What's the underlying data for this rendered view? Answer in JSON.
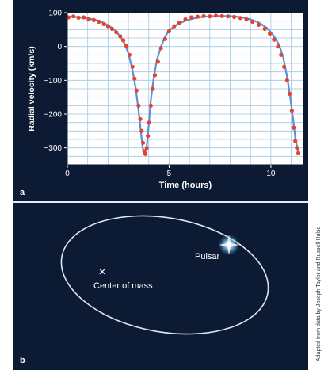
{
  "panel_a": {
    "label": "a"
  },
  "panel_b": {
    "label": "b",
    "center_label": "Center of mass",
    "pulsar_label": "Pulsar",
    "center_marker": "×"
  },
  "credit": "Adapted from data by Joseph Taylor and Russell Hulse",
  "colors": {
    "background": "#0d1a33",
    "plot_bg": "#ffffff",
    "grid": "#9ec7e3",
    "fit_line": "#5b8fd6",
    "data_points": "#e8412c",
    "orbit": "#d9e8f5",
    "text": "#ffffff"
  },
  "chart_data": {
    "type": "scatter",
    "xlabel": "Time (hours)",
    "ylabel": "Radial velocity (km/s)",
    "xlim": [
      0,
      11.6
    ],
    "ylim": [
      -350,
      100
    ],
    "x_ticks": [
      0,
      5,
      10
    ],
    "y_ticks": [
      100,
      0,
      -100,
      -200,
      -300
    ],
    "y_tick_labels": [
      "100",
      "0",
      "−100",
      "−200",
      "−300"
    ],
    "grid": true,
    "series": [
      {
        "kind": "fit-curve",
        "x": [
          0.0,
          0.4,
          0.8,
          1.2,
          1.6,
          2.0,
          2.3,
          2.6,
          2.8,
          3.0,
          3.2,
          3.35,
          3.5,
          3.6,
          3.7,
          3.8,
          3.9,
          4.0,
          4.1,
          4.25,
          4.4,
          4.6,
          4.8,
          5.0,
          5.4,
          5.8,
          6.2,
          6.6,
          7.0,
          7.4,
          7.8,
          8.2,
          8.6,
          9.0,
          9.4,
          9.8,
          10.1,
          10.4,
          10.6,
          10.8,
          10.95,
          11.1,
          11.2,
          11.3,
          11.35
        ],
        "y": [
          88,
          87,
          85,
          81,
          75,
          63,
          50,
          30,
          10,
          -20,
          -70,
          -120,
          -190,
          -245,
          -300,
          -320,
          -295,
          -230,
          -160,
          -90,
          -40,
          0,
          28,
          48,
          65,
          76,
          83,
          87,
          89,
          90,
          90,
          89,
          86,
          80,
          71,
          55,
          35,
          5,
          -30,
          -90,
          -150,
          -220,
          -270,
          -300,
          -312
        ]
      },
      {
        "kind": "data-points",
        "x": [
          0.05,
          0.3,
          0.55,
          0.8,
          1.05,
          1.3,
          1.55,
          1.8,
          2.0,
          2.2,
          2.4,
          2.6,
          2.75,
          2.9,
          3.05,
          3.2,
          3.3,
          3.4,
          3.5,
          3.58,
          3.65,
          3.72,
          3.78,
          3.84,
          3.9,
          3.96,
          4.02,
          4.1,
          4.2,
          4.3,
          4.45,
          4.6,
          4.8,
          5.0,
          5.25,
          5.5,
          5.8,
          6.1,
          6.4,
          6.7,
          7.0,
          7.3,
          7.6,
          7.9,
          8.2,
          8.5,
          8.8,
          9.1,
          9.4,
          9.7,
          9.95,
          10.15,
          10.35,
          10.5,
          10.65,
          10.8,
          10.92,
          11.03,
          11.12,
          11.2,
          11.28,
          11.35
        ],
        "y": [
          86,
          89,
          85,
          86,
          80,
          78,
          73,
          66,
          60,
          52,
          42,
          30,
          18,
          2,
          -25,
          -60,
          -95,
          -130,
          -175,
          -215,
          -250,
          -285,
          -310,
          -318,
          -300,
          -265,
          -225,
          -175,
          -125,
          -85,
          -45,
          -5,
          22,
          45,
          60,
          70,
          80,
          86,
          88,
          90,
          89,
          91,
          90,
          89,
          87,
          84,
          80,
          73,
          64,
          52,
          38,
          20,
          0,
          -25,
          -60,
          -100,
          -140,
          -190,
          -240,
          -280,
          -300,
          -315
        ]
      }
    ]
  }
}
